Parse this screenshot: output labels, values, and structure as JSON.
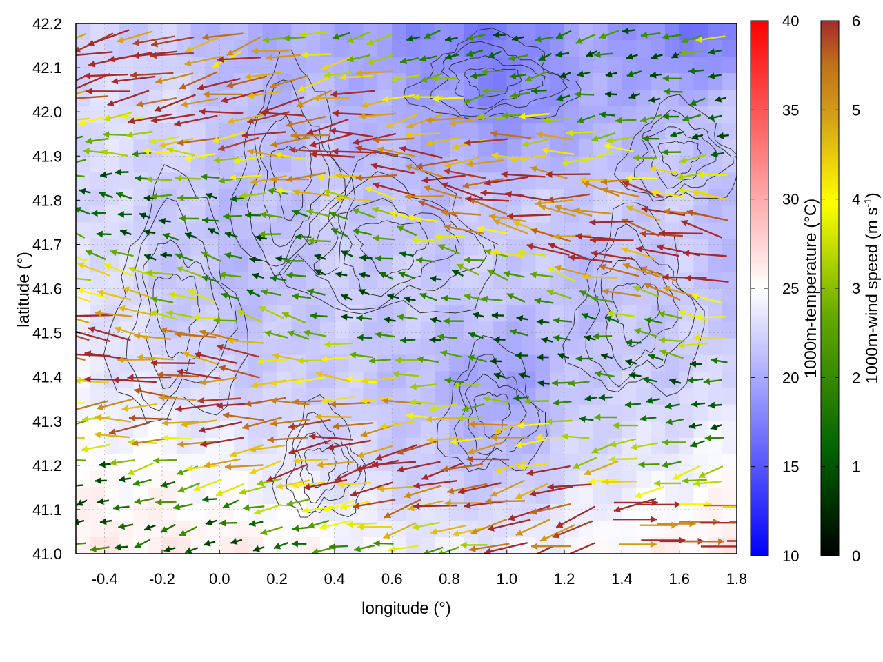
{
  "chart_data": {
    "type": "heatmap",
    "title": "",
    "xlabel": "longitude (°)",
    "ylabel": "latitude (°)",
    "xlim": [
      -0.5,
      1.8
    ],
    "ylim": [
      41.0,
      42.2
    ],
    "x_ticks": [
      "-0.4",
      "-0.2",
      "0.0",
      "0.2",
      "0.4",
      "0.6",
      "0.8",
      "1.0",
      "1.2",
      "1.4",
      "1.6",
      "1.8"
    ],
    "y_ticks": [
      "41.0",
      "41.1",
      "41.2",
      "41.3",
      "41.4",
      "41.5",
      "41.6",
      "41.7",
      "41.8",
      "41.9",
      "42.0",
      "42.1",
      "42.2"
    ],
    "grid": true,
    "overlays": [
      "contour lines (black)",
      "wind vectors (colored by speed)"
    ],
    "colorbars": [
      {
        "label": "1000m-temperature (°C)",
        "range": [
          10,
          40
        ],
        "ticks": [
          "10",
          "15",
          "20",
          "25",
          "30",
          "35",
          "40"
        ],
        "colors": [
          "#0000ff",
          "#ffffff",
          "#ff0000"
        ]
      },
      {
        "label_main": "1000m-wind speed (m s",
        "label_sup": "-1",
        "label_end": ")",
        "range": [
          0,
          6
        ],
        "ticks": [
          "0",
          "1",
          "2",
          "3",
          "4",
          "5",
          "6"
        ],
        "colors": [
          "#000000",
          "#006400",
          "#66aa00",
          "#ffff00",
          "#d4a017",
          "#c0701a",
          "#a52a2a"
        ]
      }
    ],
    "temperature_field": {
      "grid_lon": [
        -0.5,
        -0.2,
        0.1,
        0.4,
        0.7,
        1.0,
        1.3,
        1.6,
        1.8
      ],
      "grid_lat": [
        42.2,
        42.0,
        41.8,
        41.6,
        41.4,
        41.2,
        41.0
      ],
      "values": [
        [
          22,
          22,
          20,
          20,
          18,
          17,
          20,
          17,
          16
        ],
        [
          23,
          23,
          21,
          21,
          20,
          18,
          20,
          21,
          22
        ],
        [
          23,
          22,
          21,
          22,
          21,
          22,
          22,
          22,
          21
        ],
        [
          24,
          22,
          21,
          22,
          22,
          22,
          21,
          22,
          21
        ],
        [
          24,
          23,
          22,
          22,
          21,
          19,
          22,
          22,
          23
        ],
        [
          25,
          25,
          24,
          23,
          22,
          21,
          23,
          24,
          25
        ],
        [
          26,
          26,
          26,
          25,
          24,
          24,
          25,
          26,
          26
        ]
      ]
    },
    "wind_field_summary": {
      "dominant_direction": "westward (from east)",
      "strongest_speed_m_s": 6,
      "weakest_speed_m_s": 1
    }
  }
}
